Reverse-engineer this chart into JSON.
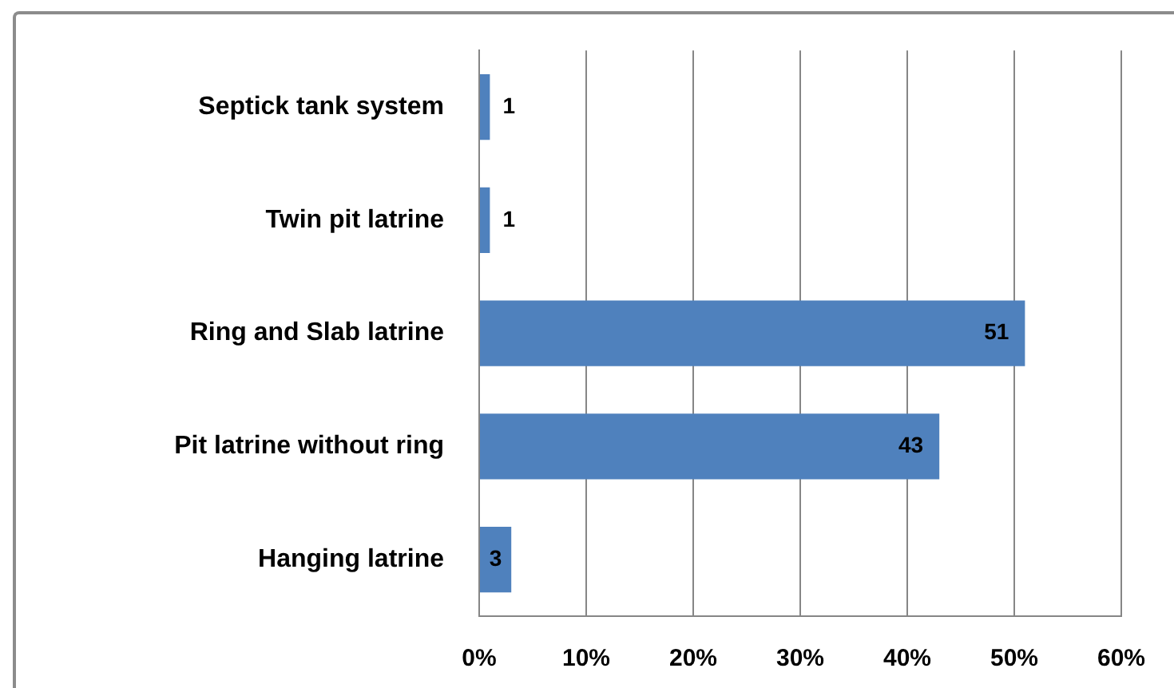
{
  "chart_data": {
    "type": "bar",
    "orientation": "horizontal",
    "categories": [
      "Septick tank system",
      "Twin pit latrine",
      "Ring and Slab latrine",
      "Pit latrine without ring",
      "Hanging latrine"
    ],
    "values": [
      1,
      1,
      51,
      43,
      3
    ],
    "color": "#4f81bd",
    "xlim": [
      0,
      60
    ],
    "xticks": [
      {
        "value": 0,
        "label": "0%"
      },
      {
        "value": 10,
        "label": "10%"
      },
      {
        "value": 20,
        "label": "20%"
      },
      {
        "value": 30,
        "label": "30%"
      },
      {
        "value": 40,
        "label": "40%"
      },
      {
        "value": 50,
        "label": "50%"
      },
      {
        "value": 60,
        "label": "60%"
      }
    ],
    "grid": "x",
    "data_labels": true
  }
}
